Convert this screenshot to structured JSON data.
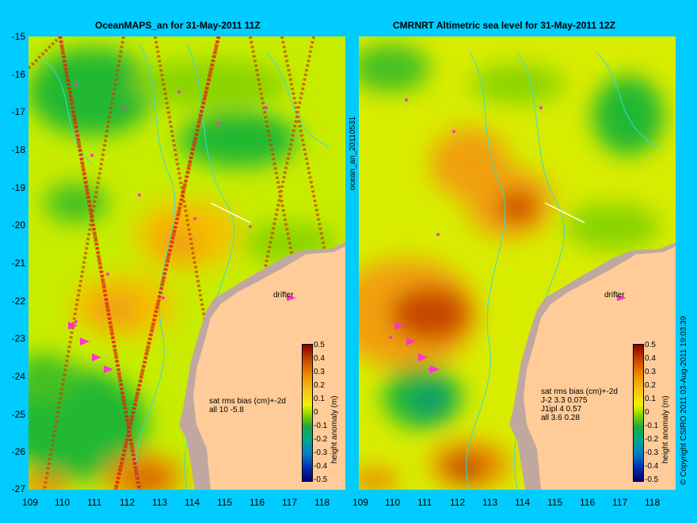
{
  "left": {
    "title": "OceanMAPS_an for 31-May-2011 11Z",
    "vertical_label": "ocean_an_20110531",
    "drifter_label": "drifter",
    "stats": [
      "sat rms bias (cm)+-2d",
      "all 10 -5.8"
    ],
    "colorbar_title": "height anomaly (m)"
  },
  "right": {
    "title": "CMRNRT Altimetric sea level  for 31-May-2011 12Z",
    "drifter_label": "drifter",
    "stats": [
      "sat rms bias (cm)+-2d",
      "J-2   3.3 0.075",
      "J1ipl 4 0.57",
      "all 3.6 0.28"
    ],
    "colorbar_title": "height anomaly (m)"
  },
  "credit": "© Copyright CSIRO 2011  03-Aug-2011 19:03:39",
  "y_ticks": [
    "-15",
    "-16",
    "-17",
    "-18",
    "-19",
    "-20",
    "-21",
    "-22",
    "-23",
    "-24",
    "-25",
    "-26",
    "-27"
  ],
  "x_ticks": [
    "109",
    "110",
    "111",
    "112",
    "113",
    "114",
    "115",
    "116",
    "117",
    "118"
  ],
  "colorbar_ticks": [
    "0.5",
    "0.4",
    "0.3",
    "0.2",
    "0.1",
    "0",
    "-0.1",
    "-0.2",
    "-0.3",
    "-0.4",
    "-0.5"
  ],
  "colors": {
    "background": "#00ccff",
    "land": "#ffcc99",
    "coast_shelf": "#c0a8a0",
    "contour": "#33dddd",
    "drifter_arrow": "#ff33cc"
  }
}
